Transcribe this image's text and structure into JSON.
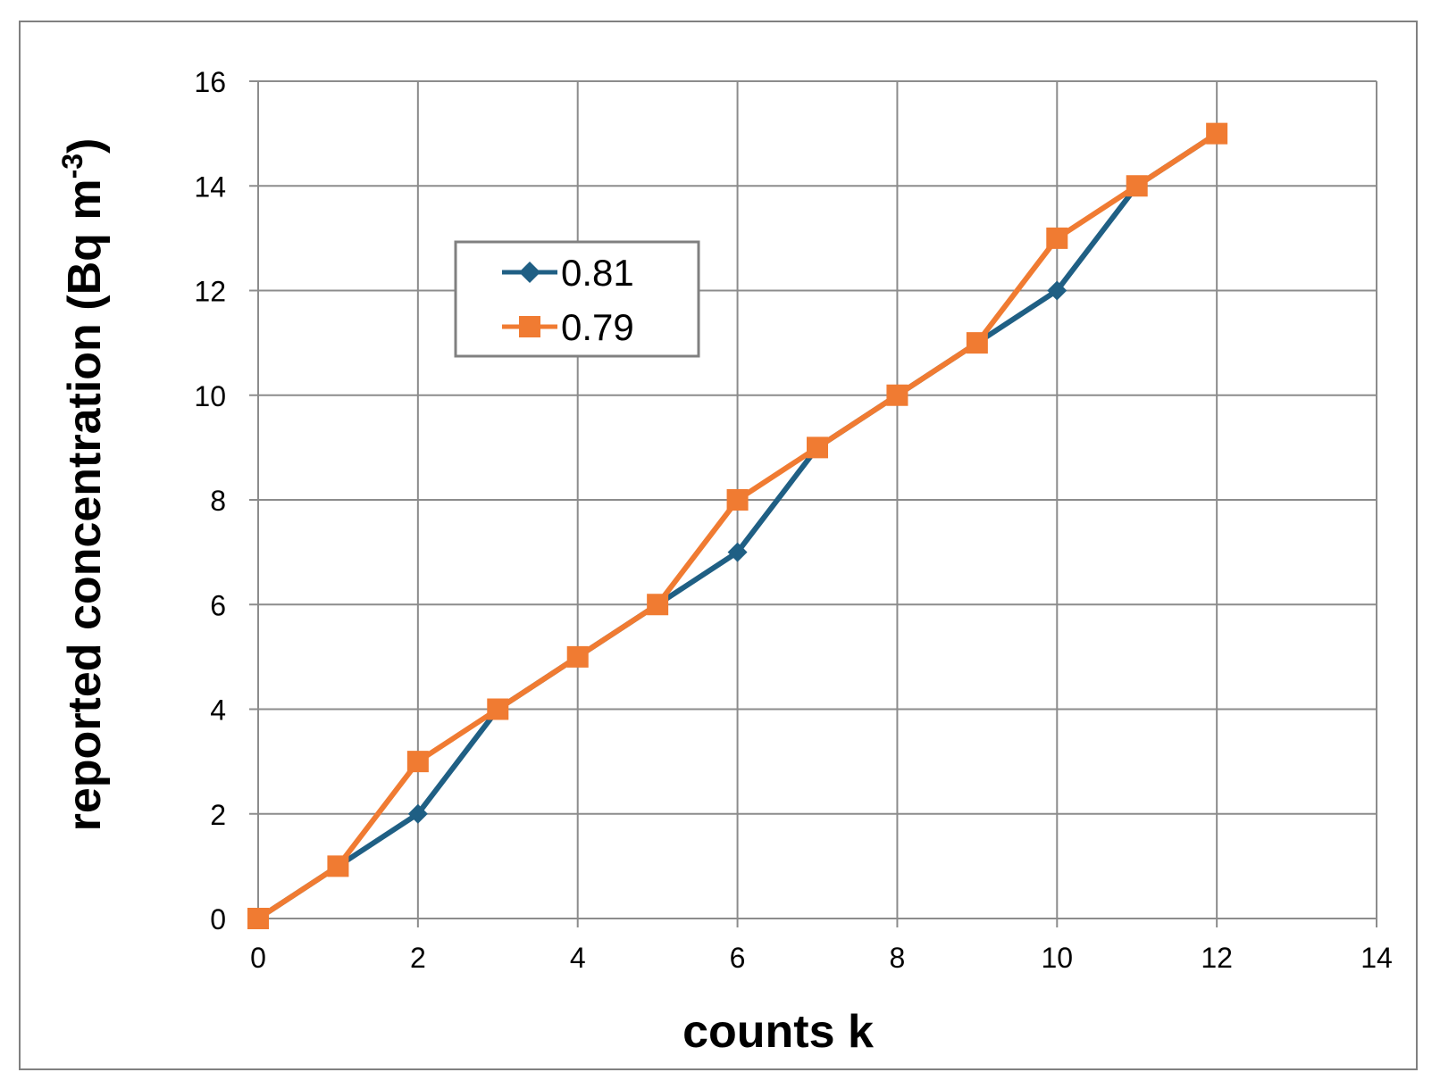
{
  "chart_data": {
    "type": "line",
    "xlabel": "counts k",
    "ylabel_main": "reported concentration (Bq m",
    "ylabel_sup": "-3",
    "ylabel_close": ")",
    "xlim": [
      0,
      14
    ],
    "ylim": [
      0,
      16
    ],
    "xticks": [
      "0",
      "2",
      "4",
      "6",
      "8",
      "10",
      "12",
      "14"
    ],
    "yticks": [
      "0",
      "2",
      "4",
      "6",
      "8",
      "10",
      "12",
      "14",
      "16"
    ],
    "grid": true,
    "legend_position": "upper-left inside plot",
    "series": [
      {
        "name": "0.81",
        "color": "#1f5f84",
        "marker": "diamond",
        "x": [
          0,
          1,
          2,
          3,
          4,
          5,
          6,
          7,
          8,
          9,
          10,
          11,
          12
        ],
        "y": [
          0,
          1,
          2,
          4,
          5,
          6,
          7,
          9,
          10,
          11,
          12,
          14,
          15
        ]
      },
      {
        "name": "0.79",
        "color": "#f07b32",
        "marker": "square",
        "x": [
          0,
          1,
          2,
          3,
          4,
          5,
          6,
          7,
          8,
          9,
          10,
          11,
          12
        ],
        "y": [
          0,
          1,
          3,
          4,
          5,
          6,
          8,
          9,
          10,
          11,
          13,
          14,
          15
        ]
      }
    ]
  }
}
